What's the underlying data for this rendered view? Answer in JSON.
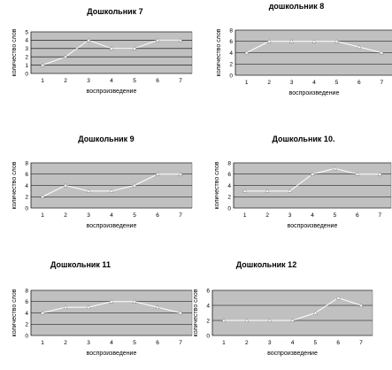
{
  "chart_data": [
    {
      "type": "line",
      "title": "Дошкольник 7",
      "xlabel": "воспроизведение",
      "ylabel": "количество слов",
      "categories": [
        "1",
        "2",
        "3",
        "4",
        "5",
        "6",
        "7"
      ],
      "ylim": [
        0,
        5
      ],
      "yticks": [
        "0",
        "1",
        "2",
        "3",
        "4",
        "5"
      ],
      "values": [
        1,
        2,
        4,
        3,
        3,
        4,
        4
      ],
      "grid": true
    },
    {
      "type": "line",
      "title": "дошкольник 8",
      "xlabel": "воспроизведение",
      "ylabel": "количество слов",
      "categories": [
        "1",
        "2",
        "3",
        "4",
        "5",
        "6",
        "7"
      ],
      "ylim": [
        0,
        8
      ],
      "yticks": [
        "0",
        "2",
        "4",
        "6",
        "8"
      ],
      "values": [
        4,
        6,
        6,
        6,
        6,
        5,
        4
      ],
      "grid": true
    },
    {
      "type": "line",
      "title": "Дошкольник 9",
      "xlabel": "воспроизведение",
      "ylabel": "количество слов",
      "categories": [
        "1",
        "2",
        "3",
        "4",
        "5",
        "6",
        "7"
      ],
      "ylim": [
        0,
        8
      ],
      "yticks": [
        "0",
        "2",
        "4",
        "6",
        "8"
      ],
      "values": [
        2,
        4,
        3,
        3,
        4,
        6,
        6
      ],
      "grid": true
    },
    {
      "type": "line",
      "title": "Дошкольник 10.",
      "xlabel": "воспроизведение",
      "ylabel": "количество слов",
      "categories": [
        "1",
        "2",
        "3",
        "4",
        "5",
        "6",
        "7"
      ],
      "ylim": [
        0,
        8
      ],
      "yticks": [
        "0",
        "2",
        "4",
        "6",
        "8"
      ],
      "values": [
        3,
        3,
        3,
        6,
        7,
        6,
        6
      ],
      "grid": true
    },
    {
      "type": "line",
      "title": "Дошкольник 11",
      "xlabel": "воспроизведение",
      "ylabel": "количество слов",
      "categories": [
        "1",
        "2",
        "3",
        "4",
        "5",
        "6",
        "7"
      ],
      "ylim": [
        0,
        8
      ],
      "yticks": [
        "0",
        "2",
        "4",
        "6",
        "8"
      ],
      "values": [
        4,
        5,
        5,
        6,
        6,
        5,
        4
      ],
      "grid": true
    },
    {
      "type": "line",
      "title": "Дошкольник 12",
      "xlabel": "воспроизведение",
      "ylabel": "количество слов",
      "categories": [
        "1",
        "2",
        "3",
        "4",
        "5",
        "6",
        "7"
      ],
      "ylim": [
        0,
        6
      ],
      "yticks": [
        "0",
        "2",
        "4",
        "6"
      ],
      "values": [
        2,
        2,
        2,
        2,
        3,
        5,
        4
      ],
      "grid": true
    }
  ],
  "colors": {
    "plot_background": "#c0c0c0",
    "series_line": "#ffffff",
    "gridline": "#000000"
  }
}
